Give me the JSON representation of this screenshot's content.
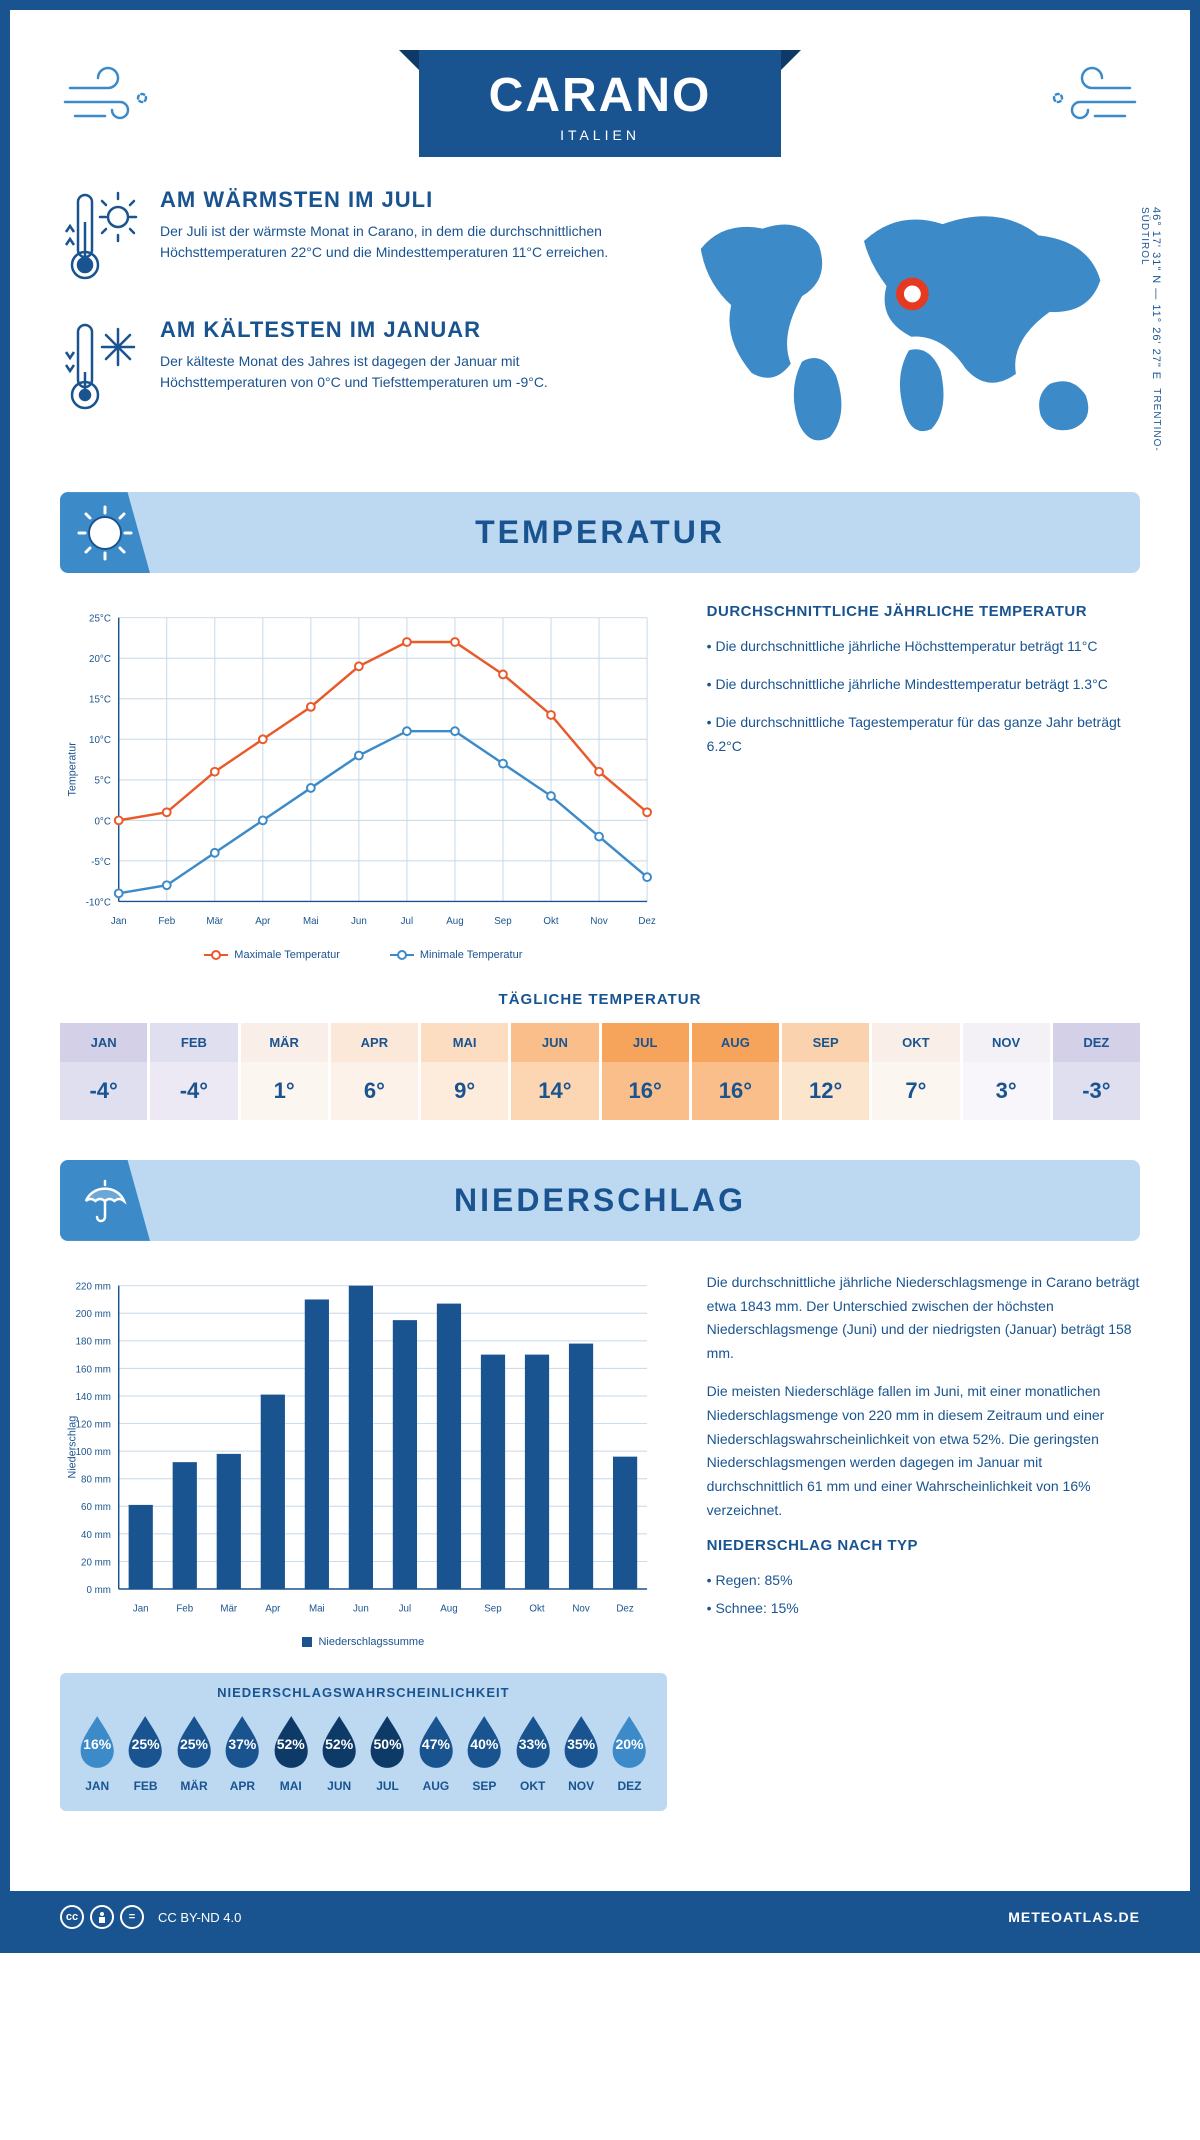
{
  "header": {
    "city": "CARANO",
    "country": "ITALIEN",
    "coords": "46° 17' 31\" N — 11° 26' 27\" E",
    "region": "TRENTINO-SÜDTIROL"
  },
  "warm": {
    "title": "AM WÄRMSTEN IM JULI",
    "text": "Der Juli ist der wärmste Monat in Carano, in dem die durchschnittlichen Höchsttemperaturen 22°C und die Mindesttemperaturen 11°C erreichen."
  },
  "cold": {
    "title": "AM KÄLTESTEN IM JANUAR",
    "text": "Der kälteste Monat des Jahres ist dagegen der Januar mit Höchsttemperaturen von 0°C und Tiefsttemperaturen um -9°C."
  },
  "sections": {
    "temp": "TEMPERATUR",
    "precip": "NIEDERSCHLAG"
  },
  "months": [
    "Jan",
    "Feb",
    "Mär",
    "Apr",
    "Mai",
    "Jun",
    "Jul",
    "Aug",
    "Sep",
    "Okt",
    "Nov",
    "Dez"
  ],
  "months_upper": [
    "JAN",
    "FEB",
    "MÄR",
    "APR",
    "MAI",
    "JUN",
    "JUL",
    "AUG",
    "SEP",
    "OKT",
    "NOV",
    "DEZ"
  ],
  "tempChart": {
    "ylabel": "Temperatur",
    "ylim": [
      -10,
      25
    ],
    "ytick_step": 5,
    "max_series": {
      "label": "Maximale Temperatur",
      "color": "#e85a2a",
      "values": [
        0,
        1,
        6,
        10,
        14,
        19,
        22,
        22,
        18,
        13,
        6,
        1
      ]
    },
    "min_series": {
      "label": "Minimale Temperatur",
      "color": "#3d8ac9",
      "values": [
        -9,
        -8,
        -4,
        0,
        4,
        8,
        11,
        11,
        7,
        3,
        -2,
        -7
      ]
    },
    "grid_color": "#c5d8e8",
    "axis_color": "#1a5490",
    "label_fontsize": 10
  },
  "tempSide": {
    "head": "DURCHSCHNITTLICHE JÄHRLICHE TEMPERATUR",
    "b1": "• Die durchschnittliche jährliche Höchsttemperatur beträgt 11°C",
    "b2": "• Die durchschnittliche jährliche Mindesttemperatur beträgt 1.3°C",
    "b3": "• Die durchschnittliche Tagestemperatur für das ganze Jahr beträgt 6.2°C"
  },
  "daily": {
    "title": "TÄGLICHE TEMPERATUR",
    "values": [
      "-4°",
      "-4°",
      "1°",
      "6°",
      "9°",
      "14°",
      "16°",
      "16°",
      "12°",
      "7°",
      "3°",
      "-3°"
    ],
    "head_colors": [
      "#d3d0e8",
      "#e0dff0",
      "#f9efe8",
      "#fbe8d8",
      "#fcddc1",
      "#f9be8a",
      "#f6a35c",
      "#f6a35c",
      "#fad2ad",
      "#f9efe8",
      "#f3f0f6",
      "#d3d0e8"
    ],
    "body_colors": [
      "#e0dff0",
      "#ece9f5",
      "#fcf6f1",
      "#fdf2e9",
      "#fdebdb",
      "#fcd6b2",
      "#f9be8a",
      "#f9be8a",
      "#fce5cd",
      "#fcf6f1",
      "#f8f6fa",
      "#e0dff0"
    ],
    "text_color": "#1a5490"
  },
  "precipChart": {
    "ylabel": "Niederschlag",
    "ylim": [
      0,
      220
    ],
    "ytick_step": 20,
    "values": [
      61,
      92,
      98,
      141,
      210,
      220,
      195,
      207,
      170,
      170,
      178,
      96
    ],
    "bar_color": "#1a5490",
    "grid_color": "#c5d8e8",
    "legend": "Niederschlagssumme"
  },
  "precipSide": {
    "p1": "Die durchschnittliche jährliche Niederschlagsmenge in Carano beträgt etwa 1843 mm. Der Unterschied zwischen der höchsten Niederschlagsmenge (Juni) und der niedrigsten (Januar) beträgt 158 mm.",
    "p2": "Die meisten Niederschläge fallen im Juni, mit einer monatlichen Niederschlagsmenge von 220 mm in diesem Zeitraum und einer Niederschlagswahrscheinlichkeit von etwa 52%. Die geringsten Niederschlagsmengen werden dagegen im Januar mit durchschnittlich 61 mm und einer Wahrscheinlichkeit von 16% verzeichnet.",
    "type_head": "NIEDERSCHLAG NACH TYP",
    "rain": "• Regen: 85%",
    "snow": "• Schnee: 15%"
  },
  "prob": {
    "title": "NIEDERSCHLAGSWAHRSCHEINLICHKEIT",
    "values": [
      "16%",
      "25%",
      "25%",
      "37%",
      "52%",
      "52%",
      "50%",
      "47%",
      "40%",
      "33%",
      "35%",
      "20%"
    ],
    "colors": [
      "#3d8ac9",
      "#1a5490",
      "#1a5490",
      "#1a5490",
      "#0d3a66",
      "#0d3a66",
      "#0d3a66",
      "#1a5490",
      "#1a5490",
      "#1a5490",
      "#1a5490",
      "#3d8ac9"
    ]
  },
  "footer": {
    "license": "CC BY-ND 4.0",
    "brand": "METEOATLAS.DE"
  }
}
